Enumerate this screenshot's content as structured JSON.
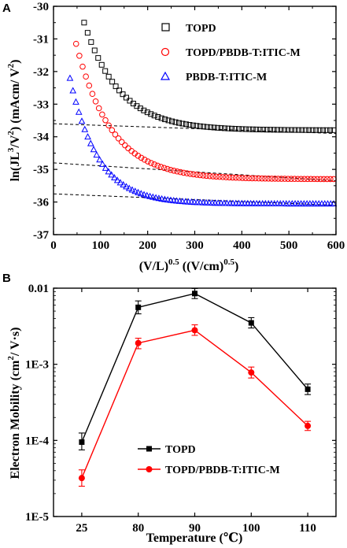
{
  "chart_data": [
    {
      "panel": "A",
      "type": "scatter",
      "xlabel": "(V/L)",
      "xlabel_sup": "0.5",
      "xlabel_unit": "((V/cm)",
      "xlabel_unit_sup": "0.5",
      "xlabel_close": ")",
      "ylabel_parts": [
        "ln(JL",
        "3",
        "/V",
        "2",
        ") (mAcm/ V",
        "2",
        ")"
      ],
      "xlim": [
        0,
        600
      ],
      "ylim": [
        -37,
        -30
      ],
      "xticks": [
        0,
        100,
        200,
        300,
        400,
        500,
        600
      ],
      "xtick_labels": [
        "0",
        "100",
        "200",
        "300",
        "400",
        "500",
        "600"
      ],
      "yticks": [
        -37,
        -36,
        -35,
        -34,
        -33,
        -32,
        -31,
        -30
      ],
      "ytick_labels": [
        "-37",
        "-36",
        "-35",
        "-34",
        "-33",
        "-32",
        "-31",
        "-30"
      ],
      "legend_position": "top-right",
      "series": [
        {
          "name": "TOPD",
          "marker": "square",
          "color": "#000000",
          "x_start": 65,
          "x_end": 595,
          "n_points": 72,
          "curve": {
            "y_inf": -33.8,
            "amp": 3.3,
            "tau": 75
          },
          "y_at": {
            "65": -30.5,
            "100": -31.2,
            "200": -32.7,
            "300": -33.3,
            "400": -33.6,
            "500": -33.75,
            "595": -33.8
          }
        },
        {
          "name": "TOPD/PBDB-T:ITIC-M",
          "marker": "circle",
          "color": "#ff0000",
          "x_start": 48,
          "x_end": 595,
          "n_points": 80,
          "curve": {
            "y_inf": -35.3,
            "amp": 4.15,
            "tau": 75
          },
          "y_at": {
            "48": -31.15,
            "100": -32.9,
            "200": -34.0,
            "300": -34.6,
            "400": -34.95,
            "500": -35.15,
            "595": -35.3
          }
        },
        {
          "name": "PBDB-T:ITIC-M",
          "marker": "triangle",
          "color": "#0000ff",
          "x_start": 35,
          "x_end": 595,
          "n_points": 90,
          "curve": {
            "y_inf": -36.05,
            "amp": 3.85,
            "tau": 60
          },
          "y_at": {
            "35": -32.2,
            "100": -34.0,
            "200": -35.0,
            "300": -35.6,
            "400": -35.85,
            "500": -36.0,
            "595": -36.05
          }
        }
      ],
      "fit_lines": [
        {
          "x": [
            0,
            600
          ],
          "y": [
            -33.6,
            -33.9
          ],
          "style": "dashed"
        },
        {
          "x": [
            0,
            600
          ],
          "y": [
            -34.8,
            -35.35
          ],
          "style": "dashed"
        },
        {
          "x": [
            0,
            600
          ],
          "y": [
            -35.75,
            -36.1
          ],
          "style": "dashed"
        }
      ]
    },
    {
      "panel": "B",
      "type": "line",
      "scale_y": "log",
      "xlabel": "Temperature (℃)",
      "ylabel_parts": [
        "Electron Mobility (cm",
        "2",
        "/ V·s)"
      ],
      "categories": [
        "25",
        "80",
        "90",
        "100",
        "110"
      ],
      "ylim": [
        1e-05,
        0.01
      ],
      "yticks": [
        1e-05,
        0.0001,
        0.001,
        0.01
      ],
      "ytick_labels": [
        "1E-5",
        "1E-4",
        "1E-3",
        "0.01"
      ],
      "legend_position": "bottom-center",
      "series": [
        {
          "name": "TOPD",
          "marker": "square",
          "color": "#000000",
          "values": [
            9.5e-05,
            0.0056,
            0.0085,
            0.0035,
            0.00047
          ],
          "err_low": [
            7.5e-05,
            0.0046,
            0.0073,
            0.003,
            0.0004
          ],
          "err_high": [
            0.000125,
            0.0068,
            0.0099,
            0.0041,
            0.00055
          ]
        },
        {
          "name": "TOPD/PBDB-T:ITIC-M",
          "marker": "circle",
          "color": "#ff0000",
          "values": [
            3.2e-05,
            0.0019,
            0.0028,
            0.00078,
            0.000155
          ],
          "err_low": [
            2.5e-05,
            0.0016,
            0.0024,
            0.00066,
            0.000135
          ],
          "err_high": [
            4.1e-05,
            0.0022,
            0.0033,
            0.00092,
            0.000178
          ]
        }
      ]
    }
  ],
  "panels": {
    "a_label": "A",
    "b_label": "B"
  }
}
